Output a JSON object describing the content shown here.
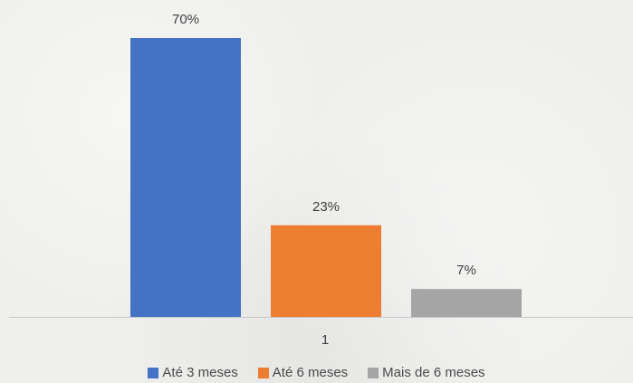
{
  "chart_data": {
    "type": "bar",
    "categories": [
      "1"
    ],
    "series": [
      {
        "name": "Até 3 meses",
        "values": [
          70
        ],
        "label": "70%",
        "color": "#4472c4"
      },
      {
        "name": "Até 6 meses",
        "values": [
          23
        ],
        "label": "23%",
        "color": "#ed7d31"
      },
      {
        "name": "Mais de 6 meses",
        "values": [
          7
        ],
        "label": "7%",
        "color": "#a5a5a5"
      }
    ],
    "ylim": [
      0,
      70
    ],
    "grid": false,
    "legend": "bottom",
    "axis_color": "#c8c8c8"
  }
}
